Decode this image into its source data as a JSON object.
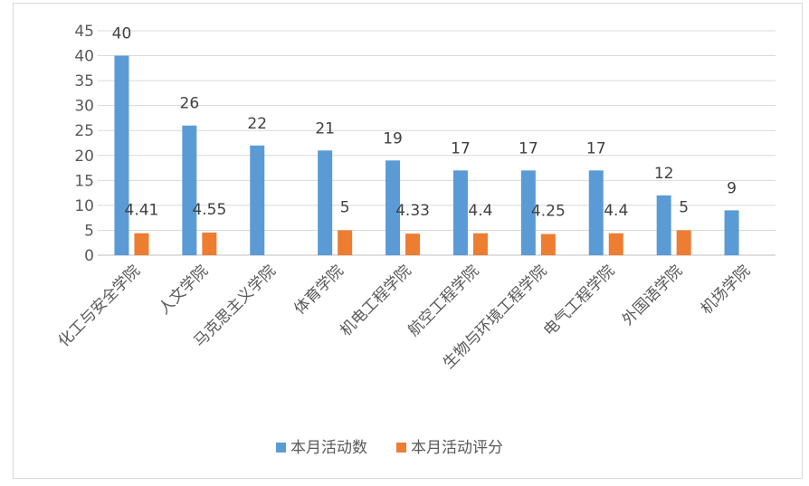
{
  "chart_data": {
    "type": "bar",
    "categories": [
      "化工与安全学院",
      "人文学院",
      "马克思主义学院",
      "体育学院",
      "机电工程学院",
      "航空工程学院",
      "生物与环境工程学院",
      "电气工程学院",
      "外国语学院",
      "机场学院"
    ],
    "series": [
      {
        "name": "本月活动数",
        "color": "#5b9bd5",
        "values": [
          40,
          26,
          22,
          21,
          19,
          17,
          17,
          17,
          12,
          9
        ],
        "labels": [
          "40",
          "26",
          "22",
          "21",
          "19",
          "17",
          "17",
          "17",
          "12",
          "9"
        ]
      },
      {
        "name": "本月活动评分",
        "color": "#ed7d31",
        "values": [
          4.41,
          4.55,
          null,
          5,
          4.33,
          4.4,
          4.25,
          4.4,
          5,
          null
        ],
        "labels": [
          "4.41",
          "4.55",
          "",
          "5",
          "4.33",
          "4.4",
          "4.25",
          "4.4",
          "5",
          ""
        ]
      }
    ],
    "yticks": [
      "0",
      "5",
      "10",
      "15",
      "20",
      "25",
      "30",
      "35",
      "40",
      "45"
    ],
    "ylim": [
      0,
      45
    ],
    "grid": true,
    "legend_position": "bottom"
  }
}
